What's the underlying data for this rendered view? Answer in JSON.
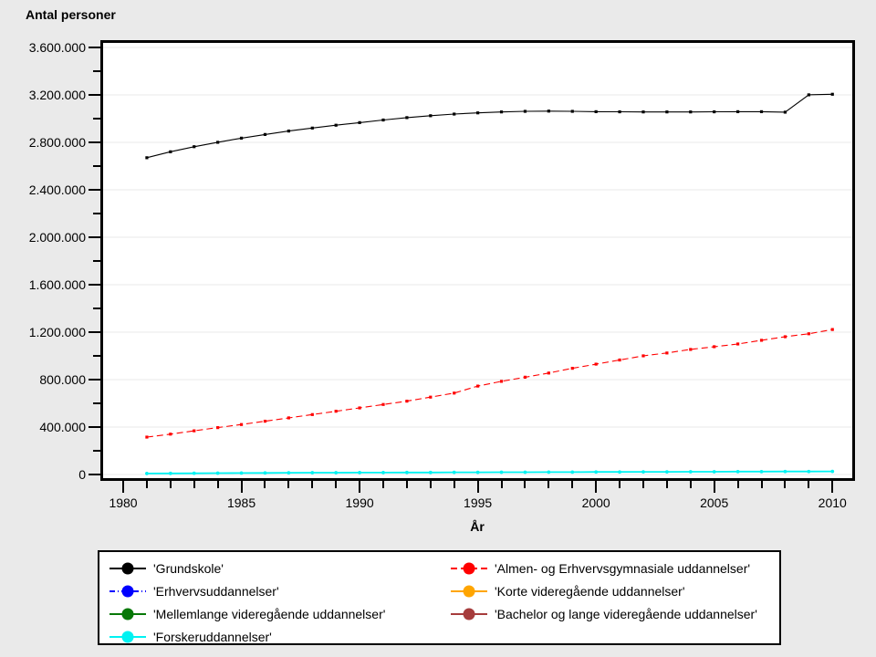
{
  "chart_data": {
    "type": "line",
    "title": "Antal personer",
    "xlabel": "År",
    "ylabel": "Antal personer",
    "grid": "horizontal-only",
    "legend_position": "bottom-box",
    "xlim": [
      1979.15,
      2010.84
    ],
    "ylim": [
      -31000,
      3638000
    ],
    "x": [
      1981,
      1982,
      1983,
      1984,
      1985,
      1986,
      1987,
      1988,
      1989,
      1990,
      1991,
      1992,
      1993,
      1994,
      1995,
      1996,
      1997,
      1998,
      1999,
      2000,
      2001,
      2002,
      2003,
      2004,
      2005,
      2006,
      2007,
      2008,
      2009,
      2010
    ],
    "yticks": {
      "major_values": [
        0,
        400000,
        800000,
        1200000,
        1600000,
        2000000,
        2400000,
        2800000,
        3200000,
        3600000
      ],
      "major_labels": [
        "0",
        "400.000",
        "800.000",
        "1.200.000",
        "1.600.000",
        "2.000.000",
        "2.400.000",
        "2.800.000",
        "3.200.000",
        "3.600.000"
      ],
      "minor_values": [
        200000,
        600000,
        1000000,
        1400000,
        1800000,
        2200000,
        2600000,
        3000000,
        3400000
      ]
    },
    "xticks": {
      "major_values": [
        1980,
        1985,
        1990,
        1995,
        2000,
        2005,
        2010
      ],
      "major_labels": [
        "1980",
        "1985",
        "1990",
        "1995",
        "2000",
        "2005",
        "2010"
      ],
      "minor_values": [
        1981,
        1982,
        1983,
        1984,
        1986,
        1987,
        1988,
        1989,
        1991,
        1992,
        1993,
        1994,
        1996,
        1997,
        1998,
        1999,
        2001,
        2002,
        2003,
        2004,
        2006,
        2007,
        2008,
        2009
      ]
    },
    "series": [
      {
        "id": "grundskole",
        "name": "'Grundskole'",
        "color": "#000000",
        "style": "solid",
        "marker": "square",
        "values": [
          2670000,
          2720000,
          2763000,
          2800000,
          2835000,
          2866000,
          2895000,
          2920000,
          2944000,
          2966000,
          2988000,
          3008000,
          3024000,
          3038000,
          3048000,
          3056000,
          3061000,
          3063000,
          3061000,
          3058000,
          3057000,
          3056000,
          3056000,
          3056000,
          3057000,
          3058000,
          3058000,
          3054000,
          3200000,
          3205000
        ]
      },
      {
        "id": "erhvervsuddannelser",
        "name": "'Erhvervsuddannelser'",
        "color": "#0000FF",
        "style": "dash-dot",
        "marker": "circle",
        "values": null
      },
      {
        "id": "mellemlange-videregaende",
        "name": "'Mellemlange videregående uddannelser'",
        "color": "#077807",
        "style": "solid",
        "marker": "circle",
        "values": null
      },
      {
        "id": "forskeruddannelser",
        "name": "'Forskeruddannelser'",
        "color": "#00F2F2",
        "style": "solid",
        "marker": "circle",
        "values": [
          8000,
          9000,
          10000,
          11000,
          12000,
          13000,
          14000,
          15000,
          15000,
          16000,
          16000,
          17000,
          17000,
          18000,
          18000,
          19000,
          19000,
          20000,
          20000,
          21000,
          21000,
          22000,
          22000,
          23000,
          23000,
          24000,
          24000,
          25000,
          25000,
          26000
        ]
      },
      {
        "id": "almen-og-erhvervsgymnasiale",
        "name": "'Almen- og Erhvervsgymnasiale uddannelser'",
        "color": "#FF0000",
        "style": "dashed",
        "marker": "square",
        "values": [
          315000,
          340000,
          368000,
          395000,
          421000,
          449000,
          477000,
          505000,
          533000,
          561000,
          590000,
          618000,
          652000,
          686000,
          745000,
          785000,
          820000,
          855000,
          895000,
          930000,
          965000,
          1000000,
          1024000,
          1054000,
          1077000,
          1100000,
          1131000,
          1161000,
          1186000,
          1222000
        ]
      },
      {
        "id": "korte-videregaende",
        "name": "'Korte videregående uddannelser'",
        "color": "#FFA500",
        "style": "solid",
        "marker": "circle",
        "values": null
      },
      {
        "id": "bachelor-og-lange-videregaende",
        "name": "'Bachelor og lange videregående uddannelser'",
        "color": "#A63C3C",
        "style": "solid",
        "marker": "circle",
        "values": null
      }
    ]
  },
  "legend": {
    "columns": [
      [
        0,
        1,
        2,
        3
      ],
      [
        4,
        5,
        6
      ]
    ]
  },
  "colors": {
    "page_background": "#EAEAEA",
    "plot_background": "#FFFFFF",
    "gridline": "#E8E8E8",
    "axis": "#000000"
  }
}
